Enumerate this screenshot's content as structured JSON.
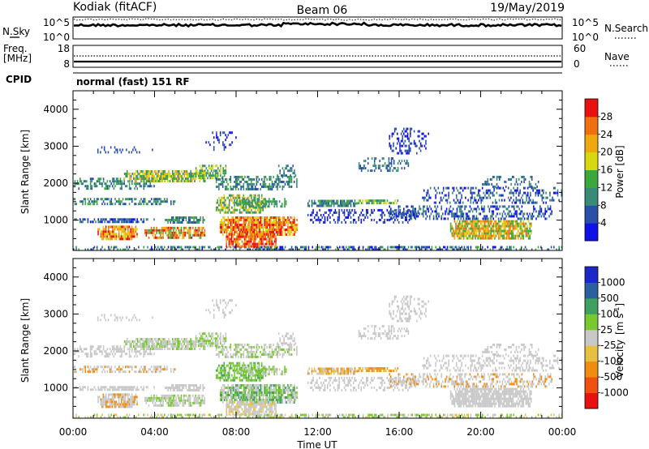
{
  "header": {
    "station": "Kodiak (fitACF)",
    "beam": "Beam 06",
    "date": "19/May/2019"
  },
  "noise_panel": {
    "left_label": "N.Sky",
    "right_label": "N.Search",
    "left_ticks": [
      "10^5",
      "10^0"
    ],
    "right_ticks": [
      "10^5",
      "10^0"
    ]
  },
  "freq_panel": {
    "left_label_line1": "Freq.",
    "left_label_line2": "[MHz]",
    "right_label": "Nave",
    "left_ticks": [
      "18",
      "8"
    ],
    "right_ticks": [
      "60",
      "0"
    ]
  },
  "cpid": {
    "label": "CPID",
    "text": "normal (fast) 151 RF"
  },
  "chart_data": [
    {
      "type": "heatmap",
      "name": "Power",
      "ylabel": "Slant Range [km]",
      "ylim": [
        180,
        4500
      ],
      "yticks": [
        "1000",
        "2000",
        "3000",
        "4000"
      ],
      "xlim": [
        "00:00",
        "24:00"
      ],
      "colorbar_label": "Power [dB]",
      "colorbar_ticks": [
        "4",
        "8",
        "12",
        "16",
        "20",
        "24",
        "28"
      ],
      "colorbar_colors": [
        "#1010e8",
        "#2850a8",
        "#3a8a78",
        "#3ca83c",
        "#d8d810",
        "#f0a810",
        "#f07010",
        "#e81010"
      ],
      "colorbar_range": [
        0,
        32
      ]
    },
    {
      "type": "heatmap",
      "name": "Velocity",
      "ylabel": "Slant Range [km]",
      "ylim": [
        180,
        4500
      ],
      "yticks": [
        "1000",
        "2000",
        "3000",
        "4000"
      ],
      "xlim": [
        "00:00",
        "24:00"
      ],
      "xticks": [
        "00:00",
        "04:00",
        "08:00",
        "12:00",
        "16:00",
        "20:00",
        "00:00"
      ],
      "xlabel": "Time UT",
      "colorbar_label_main": "Velocity",
      "colorbar_label_unit": "[m s",
      "colorbar_label_sup": "-1",
      "colorbar_ticks": [
        "1000",
        "500",
        "100",
        "25",
        "-25",
        "-100",
        "-500",
        "-1000"
      ],
      "colorbar_colors": [
        "#1a28c8",
        "#2a60a0",
        "#40a060",
        "#78c830",
        "#c8c8c8",
        "#e8c040",
        "#f08c10",
        "#f05010",
        "#e81010"
      ]
    }
  ]
}
